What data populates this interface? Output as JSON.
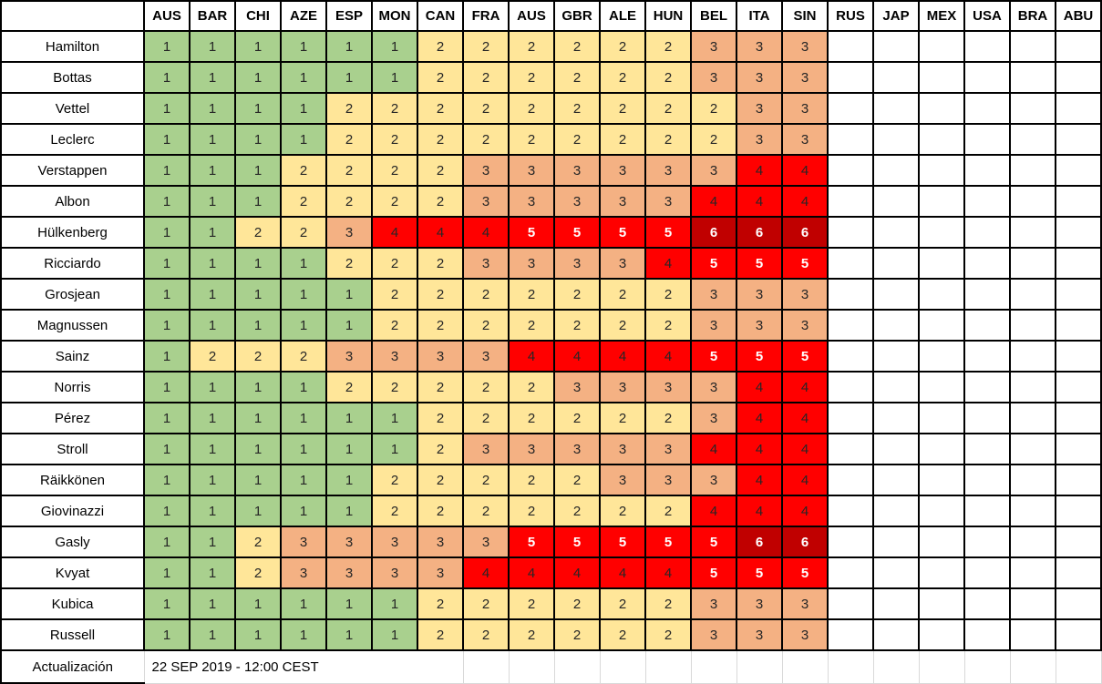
{
  "table": {
    "corner_label": "",
    "columns": [
      "AUS",
      "BAR",
      "CHI",
      "AZE",
      "ESP",
      "MON",
      "CAN",
      "FRA",
      "AUS",
      "GBR",
      "ALE",
      "HUN",
      "BEL",
      "ITA",
      "SIN",
      "RUS",
      "JAP",
      "MEX",
      "USA",
      "BRA",
      "ABU"
    ],
    "rows": [
      {
        "driver": "Hamilton",
        "values": [
          1,
          1,
          1,
          1,
          1,
          1,
          2,
          2,
          2,
          2,
          2,
          2,
          3,
          3,
          3
        ]
      },
      {
        "driver": "Bottas",
        "values": [
          1,
          1,
          1,
          1,
          1,
          1,
          2,
          2,
          2,
          2,
          2,
          2,
          3,
          3,
          3
        ]
      },
      {
        "driver": "Vettel",
        "values": [
          1,
          1,
          1,
          1,
          2,
          2,
          2,
          2,
          2,
          2,
          2,
          2,
          2,
          3,
          3
        ]
      },
      {
        "driver": "Leclerc",
        "values": [
          1,
          1,
          1,
          1,
          2,
          2,
          2,
          2,
          2,
          2,
          2,
          2,
          2,
          3,
          3
        ]
      },
      {
        "driver": "Verstappen",
        "values": [
          1,
          1,
          1,
          2,
          2,
          2,
          2,
          3,
          3,
          3,
          3,
          3,
          3,
          4,
          4
        ]
      },
      {
        "driver": "Albon",
        "values": [
          1,
          1,
          1,
          2,
          2,
          2,
          2,
          3,
          3,
          3,
          3,
          3,
          4,
          4,
          4
        ]
      },
      {
        "driver": "Hülkenberg",
        "values": [
          1,
          1,
          2,
          2,
          3,
          4,
          4,
          4,
          5,
          5,
          5,
          5,
          6,
          6,
          6
        ]
      },
      {
        "driver": "Ricciardo",
        "values": [
          1,
          1,
          1,
          1,
          2,
          2,
          2,
          3,
          3,
          3,
          3,
          4,
          5,
          5,
          5
        ]
      },
      {
        "driver": "Grosjean",
        "values": [
          1,
          1,
          1,
          1,
          1,
          2,
          2,
          2,
          2,
          2,
          2,
          2,
          3,
          3,
          3
        ]
      },
      {
        "driver": "Magnussen",
        "values": [
          1,
          1,
          1,
          1,
          1,
          2,
          2,
          2,
          2,
          2,
          2,
          2,
          3,
          3,
          3
        ]
      },
      {
        "driver": "Sainz",
        "values": [
          1,
          2,
          2,
          2,
          3,
          3,
          3,
          3,
          4,
          4,
          4,
          4,
          5,
          5,
          5
        ]
      },
      {
        "driver": "Norris",
        "values": [
          1,
          1,
          1,
          1,
          2,
          2,
          2,
          2,
          2,
          3,
          3,
          3,
          3,
          4,
          4
        ]
      },
      {
        "driver": "Pérez",
        "values": [
          1,
          1,
          1,
          1,
          1,
          1,
          2,
          2,
          2,
          2,
          2,
          2,
          3,
          4,
          4
        ]
      },
      {
        "driver": "Stroll",
        "values": [
          1,
          1,
          1,
          1,
          1,
          1,
          2,
          3,
          3,
          3,
          3,
          3,
          4,
          4,
          4
        ]
      },
      {
        "driver": "Räikkönen",
        "values": [
          1,
          1,
          1,
          1,
          1,
          2,
          2,
          2,
          2,
          2,
          3,
          3,
          3,
          4,
          4
        ]
      },
      {
        "driver": "Giovinazzi",
        "values": [
          1,
          1,
          1,
          1,
          1,
          2,
          2,
          2,
          2,
          2,
          2,
          2,
          4,
          4,
          4
        ]
      },
      {
        "driver": "Gasly",
        "values": [
          1,
          1,
          2,
          3,
          3,
          3,
          3,
          3,
          5,
          5,
          5,
          5,
          5,
          6,
          6
        ]
      },
      {
        "driver": "Kvyat",
        "values": [
          1,
          1,
          2,
          3,
          3,
          3,
          3,
          4,
          4,
          4,
          4,
          4,
          5,
          5,
          5
        ]
      },
      {
        "driver": "Kubica",
        "values": [
          1,
          1,
          1,
          1,
          1,
          1,
          2,
          2,
          2,
          2,
          2,
          2,
          3,
          3,
          3
        ]
      },
      {
        "driver": "Russell",
        "values": [
          1,
          1,
          1,
          1,
          1,
          1,
          2,
          2,
          2,
          2,
          2,
          2,
          3,
          3,
          3
        ]
      }
    ],
    "cell_styles": {
      "1": {
        "bg": "#A9D08E",
        "fg": "#262626",
        "bold": false
      },
      "2": {
        "bg": "#FFE699",
        "fg": "#262626",
        "bold": false
      },
      "3": {
        "bg": "#F4B183",
        "fg": "#262626",
        "bold": false
      },
      "4": {
        "bg": "#FF0000",
        "fg": "#262626",
        "bold": false
      },
      "5": {
        "bg": "#FF0000",
        "fg": "#FFFFFF",
        "bold": true
      },
      "6": {
        "bg": "#C00000",
        "fg": "#FFFFFF",
        "bold": true
      }
    },
    "grid_color": "#000000",
    "footer_grid_color": "#d9d9d9"
  },
  "footer": {
    "label": "Actualización",
    "value": "22 SEP 2019 - 12:00 CEST",
    "value_colspan": 7
  }
}
